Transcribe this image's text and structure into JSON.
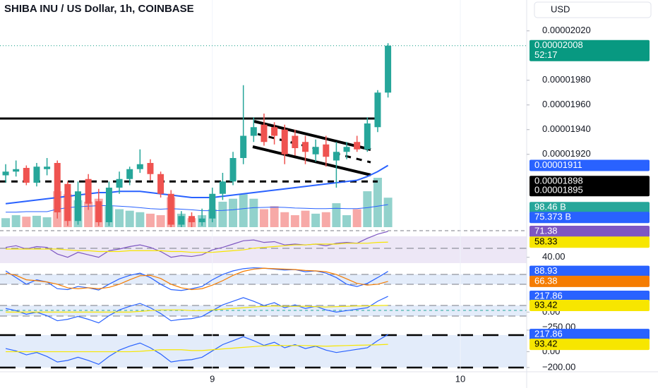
{
  "chart_data": [
    {
      "type": "candlestick",
      "title": "SHIBA INU / US Dollar, 1h, COINBASE",
      "currency": "USD",
      "xlim": [
        -0.55,
        50.42
      ],
      "xticks": [
        {
          "value": 20,
          "label": "9"
        },
        {
          "value": 44,
          "label": "10"
        }
      ],
      "ylim": [
        1.861e-05,
        2.045e-05
      ],
      "yticks": [
        {
          "value": 2.02e-05,
          "label": "0.00002020"
        },
        {
          "value": 1.98e-05,
          "label": "0.00001980"
        },
        {
          "value": 1.96e-05,
          "label": "0.00001960"
        },
        {
          "value": 1.94e-05,
          "label": "0.00001940"
        },
        {
          "value": 1.92e-05,
          "label": "0.00001920"
        }
      ],
      "up_color": "#26a69a",
      "down_color": "#ef5350",
      "open": [
        1.903e-05,
        1.906e-05,
        1.909e-05,
        1.897e-05,
        1.908e-05,
        1.913e-05,
        1.896e-05,
        1.866e-05,
        1.9e-05,
        1.882e-05,
        1.865e-05,
        1.893e-05,
        1.9e-05,
        1.908e-05,
        1.913e-05,
        1.904e-05,
        1.888e-05,
        1.863e-05,
        1.87e-05,
        1.865e-05,
        1.868e-05,
        1.888e-05,
        1.898e-05,
        1.917e-05,
        1.935e-05,
        1.944e-05,
        1.942e-05,
        1.94e-05,
        1.935e-05,
        1.93e-05,
        1.92e-05,
        1.928e-05,
        1.915e-05,
        1.922e-05,
        1.93e-05,
        1.924e-05,
        1.942e-05,
        1.97e-05
      ],
      "high": [
        1.912e-05,
        1.915e-05,
        1.911e-05,
        1.913e-05,
        1.917e-05,
        1.915e-05,
        1.898e-05,
        1.898e-05,
        1.904e-05,
        1.892e-05,
        1.898e-05,
        1.906e-05,
        1.91e-05,
        1.924e-05,
        1.916e-05,
        1.906e-05,
        1.891e-05,
        1.874e-05,
        1.873e-05,
        1.876e-05,
        1.893e-05,
        1.905e-05,
        1.922e-05,
        1.976e-05,
        1.95e-05,
        1.953e-05,
        1.946e-05,
        1.944e-05,
        1.94e-05,
        1.935e-05,
        1.932e-05,
        1.935e-05,
        1.93e-05,
        1.93e-05,
        1.935e-05,
        1.95e-05,
        1.972e-05,
        2.01e-05
      ],
      "low": [
        1.897e-05,
        1.902e-05,
        1.895e-05,
        1.894e-05,
        1.903e-05,
        1.868e-05,
        1.862e-05,
        1.863e-05,
        1.875e-05,
        1.862e-05,
        1.862e-05,
        1.888e-05,
        1.895e-05,
        1.905e-05,
        1.899e-05,
        1.885e-05,
        1.861e-05,
        1.861e-05,
        1.861e-05,
        1.862e-05,
        1.865e-05,
        1.883e-05,
        1.895e-05,
        1.912e-05,
        1.93e-05,
        1.927e-05,
        1.928e-05,
        1.912e-05,
        1.919e-05,
        1.912e-05,
        1.914e-05,
        1.91e-05,
        1.893e-05,
        1.916e-05,
        1.922e-05,
        1.922e-05,
        1.938e-05,
        1.966e-05
      ],
      "close": [
        1.906e-05,
        1.908e-05,
        1.897e-05,
        1.91e-05,
        1.91e-05,
        1.873e-05,
        1.866e-05,
        1.89e-05,
        1.88e-05,
        1.865e-05,
        1.893e-05,
        1.9e-05,
        1.908e-05,
        1.912e-05,
        1.904e-05,
        1.888e-05,
        1.863e-05,
        1.87e-05,
        1.865e-05,
        1.868e-05,
        1.888e-05,
        1.898e-05,
        1.917e-05,
        1.935e-05,
        1.942e-05,
        1.93e-05,
        1.935e-05,
        1.92e-05,
        1.925e-05,
        1.922e-05,
        1.926e-05,
        1.918e-05,
        1.922e-05,
        1.926e-05,
        1.924e-05,
        1.945e-05,
        1.97e-05,
        2.008e-05
      ],
      "price_badge": {
        "label": "0.00002008",
        "countdown": "52:17",
        "color": "#089981"
      },
      "ma": {
        "color": "#2962ff",
        "label": "0.00001911",
        "values": [
          1.88e-05,
          1.881e-05,
          1.882e-05,
          1.883e-05,
          1.884e-05,
          1.885e-05,
          1.886e-05,
          1.887e-05,
          1.888e-05,
          1.889e-05,
          1.889e-05,
          1.89e-05,
          1.89e-05,
          1.89e-05,
          1.889e-05,
          1.888e-05,
          1.887e-05,
          1.886e-05,
          1.885e-05,
          1.885e-05,
          1.885e-05,
          1.886e-05,
          1.887e-05,
          1.888e-05,
          1.889e-05,
          1.89e-05,
          1.891e-05,
          1.892e-05,
          1.893e-05,
          1.894e-05,
          1.895e-05,
          1.896e-05,
          1.897e-05,
          1.898e-05,
          1.899e-05,
          1.902e-05,
          1.906e-05,
          1.911e-05
        ]
      },
      "levels": [
        {
          "value": 1.949e-05,
          "style": "solid"
        },
        {
          "value": 1.898e-05,
          "style": "dashed",
          "label": "0.00001898"
        },
        {
          "value": 1.895e-05,
          "style": "none",
          "label": "0.00001895"
        }
      ],
      "volume": {
        "values": [
          30,
          40,
          35,
          38,
          33,
          120,
          110,
          90,
          85,
          95,
          70,
          60,
          55,
          50,
          45,
          40,
          100,
          45,
          30,
          40,
          60,
          85,
          95,
          110,
          95,
          60,
          70,
          50,
          40,
          55,
          45,
          50,
          80,
          40,
          60,
          120,
          165,
          98.46
        ],
        "value_labels": {
          "37": "98.46 B"
        },
        "color": "#26a69a"
      },
      "volume_ma": {
        "color": "#2962ff",
        "values": [
          50,
          50,
          52,
          52,
          52,
          60,
          65,
          68,
          70,
          72,
          72,
          70,
          68,
          65,
          62,
          60,
          62,
          60,
          58,
          55,
          55,
          56,
          58,
          62,
          65,
          66,
          67,
          66,
          64,
          63,
          62,
          62,
          63,
          62,
          62,
          65,
          70,
          75.373
        ],
        "value_labels": {
          "37": "75.373 B"
        }
      }
    },
    {
      "type": "line",
      "ylim": [
        31.2,
        73.1
      ],
      "yticks": [
        {
          "value": 40,
          "label": "40.00"
        }
      ],
      "series": [
        {
          "color": "#7e57c2",
          "values": [
            52,
            54,
            50,
            53,
            52,
            44,
            40,
            46,
            43,
            40,
            48,
            50,
            53,
            55,
            52,
            47,
            40,
            42,
            41,
            43,
            49,
            52,
            56,
            60,
            61,
            58,
            59,
            55,
            56,
            55,
            56,
            54,
            57,
            58,
            57,
            63,
            68,
            71.38
          ]
        },
        {
          "color": "#f7e600",
          "values": [
            50,
            50,
            50,
            50,
            50,
            50,
            49,
            48,
            48,
            47,
            47,
            47,
            48,
            48,
            48,
            48,
            47,
            47,
            46,
            46,
            46,
            47,
            48,
            49,
            51,
            52,
            53,
            54,
            55,
            55,
            56,
            56,
            56,
            57,
            57,
            57,
            58,
            58.33
          ]
        }
      ]
    },
    {
      "type": "line",
      "ylim": [
        45.6,
        101.1
      ],
      "yticks": [],
      "series": [
        {
          "color": "#2962ff",
          "values": [
            90,
            75,
            60,
            70,
            65,
            50,
            48,
            55,
            52,
            47,
            60,
            72,
            80,
            85,
            75,
            60,
            48,
            46,
            50,
            55,
            70,
            82,
            90,
            95,
            97,
            96,
            94,
            92,
            93,
            88,
            90,
            85,
            75,
            60,
            55,
            62,
            75,
            88.93
          ]
        },
        {
          "color": "#f57c00",
          "values": [
            85,
            80,
            70,
            68,
            65,
            60,
            52,
            50,
            52,
            50,
            53,
            60,
            70,
            79,
            80,
            73,
            60,
            52,
            48,
            50,
            58,
            68,
            80,
            89,
            94,
            96,
            95,
            94,
            93,
            91,
            90,
            88,
            82,
            72,
            62,
            58,
            60,
            66.38
          ]
        }
      ]
    },
    {
      "type": "line",
      "ylim": [
        -250,
        277
      ],
      "yticks": [
        {
          "value": 0,
          "label": "0.00"
        },
        {
          "value": -250,
          "label": "−250.00"
        }
      ],
      "series": [
        {
          "color": "#2962ff",
          "values": [
            50,
            20,
            -30,
            0,
            -50,
            -120,
            -100,
            -60,
            -100,
            -150,
            -50,
            30,
            80,
            120,
            60,
            -20,
            -120,
            -100,
            -90,
            -60,
            20,
            100,
            150,
            200,
            150,
            90,
            130,
            60,
            100,
            50,
            80,
            30,
            0,
            20,
            40,
            60,
            150,
            217.86
          ]
        },
        {
          "color": "#f7e600",
          "values": [
            0,
            0,
            0,
            0,
            0,
            0,
            0,
            0,
            0,
            0,
            0,
            0,
            0,
            10,
            20,
            30,
            30,
            30,
            20,
            20,
            30,
            40,
            50,
            60,
            70,
            80,
            85,
            80,
            80,
            80,
            75,
            70,
            75,
            80,
            85,
            85,
            90,
            93.42
          ]
        }
      ]
    },
    {
      "type": "line",
      "ylim": [
        -245,
        273
      ],
      "yticks": [
        {
          "value": 0,
          "label": "0.00"
        },
        {
          "value": -200,
          "label": "−200.00"
        }
      ],
      "series": [
        {
          "color": "#2962ff",
          "values": [
            40,
            10,
            -40,
            -10,
            -60,
            -130,
            -110,
            -70,
            -110,
            -160,
            -60,
            20,
            70,
            110,
            50,
            -30,
            -130,
            -110,
            -100,
            -70,
            10,
            90,
            140,
            190,
            140,
            80,
            120,
            50,
            90,
            40,
            70,
            20,
            -10,
            10,
            30,
            50,
            140,
            217.86
          ]
        },
        {
          "color": "#f7e600",
          "values": [
            0,
            0,
            0,
            0,
            0,
            0,
            0,
            0,
            0,
            0,
            0,
            0,
            0,
            5,
            15,
            25,
            25,
            25,
            15,
            15,
            25,
            35,
            45,
            55,
            65,
            75,
            80,
            78,
            78,
            78,
            74,
            70,
            74,
            78,
            82,
            84,
            88,
            93.42
          ]
        }
      ]
    }
  ]
}
